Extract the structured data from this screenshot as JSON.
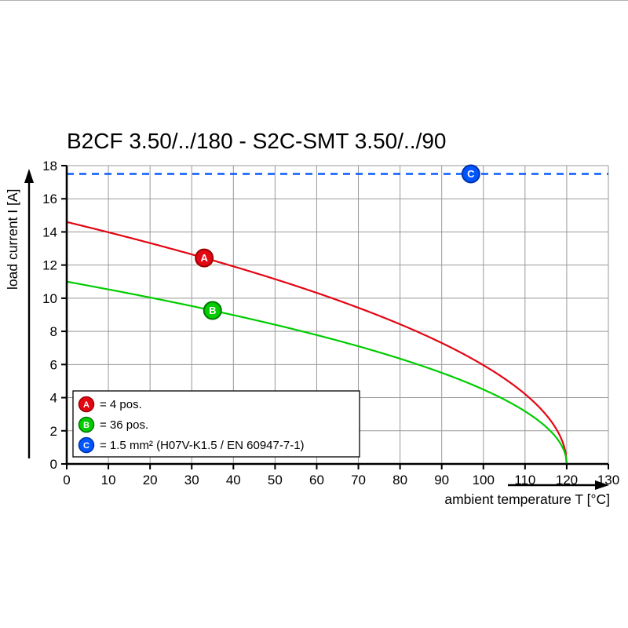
{
  "chart_data": {
    "type": "line",
    "title": "B2CF 3.50/../180 - S2C-SMT 3.50/../90",
    "xlabel": "ambient temperature T [°C]",
    "ylabel": "load current I [A]",
    "xlim": [
      0,
      130
    ],
    "ylim": [
      0,
      18
    ],
    "x_ticks": [
      0,
      10,
      20,
      30,
      40,
      50,
      60,
      70,
      80,
      90,
      100,
      110,
      120,
      130
    ],
    "y_ticks": [
      0,
      2,
      4,
      6,
      8,
      10,
      12,
      14,
      16,
      18
    ],
    "grid": true,
    "grid_color": "#999999",
    "series": [
      {
        "id": "A",
        "legend_label": "= 4 pos.",
        "color": "#e30613",
        "marker_border": "#9b0000",
        "curve": "derating-sqrt",
        "i0_amps": 14.6,
        "t_zero_current": 120,
        "points": [
          [
            0,
            14.6
          ],
          [
            10,
            13.98
          ],
          [
            20,
            13.33
          ],
          [
            30,
            12.64
          ],
          [
            40,
            11.92
          ],
          [
            50,
            11.15
          ],
          [
            60,
            10.32
          ],
          [
            70,
            9.42
          ],
          [
            80,
            8.43
          ],
          [
            90,
            7.3
          ],
          [
            100,
            5.96
          ],
          [
            110,
            4.21
          ],
          [
            115,
            2.98
          ],
          [
            120,
            0
          ]
        ],
        "marker": {
          "x": 33,
          "y": 12.43
        }
      },
      {
        "id": "B",
        "legend_label": "= 36 pos.",
        "color": "#00cc00",
        "marker_border": "#007700",
        "curve": "derating-sqrt",
        "i0_amps": 11.0,
        "t_zero_current": 120,
        "points": [
          [
            0,
            11.0
          ],
          [
            10,
            10.53
          ],
          [
            20,
            10.04
          ],
          [
            30,
            9.53
          ],
          [
            40,
            8.98
          ],
          [
            50,
            8.4
          ],
          [
            60,
            7.78
          ],
          [
            70,
            7.1
          ],
          [
            80,
            6.35
          ],
          [
            90,
            5.5
          ],
          [
            100,
            4.49
          ],
          [
            110,
            3.18
          ],
          [
            115,
            2.25
          ],
          [
            120,
            0
          ]
        ],
        "marker": {
          "x": 35,
          "y": 9.26
        }
      },
      {
        "id": "C",
        "legend_label": "= 1.5 mm² (H07V-K1.5 / EN 60947-7-1)",
        "color": "#0055ff",
        "marker_border": "#0033aa",
        "curve": "constant",
        "line_style": "dashed",
        "value_amps": 17.5,
        "marker": {
          "x": 97,
          "y": 17.5
        }
      }
    ]
  }
}
